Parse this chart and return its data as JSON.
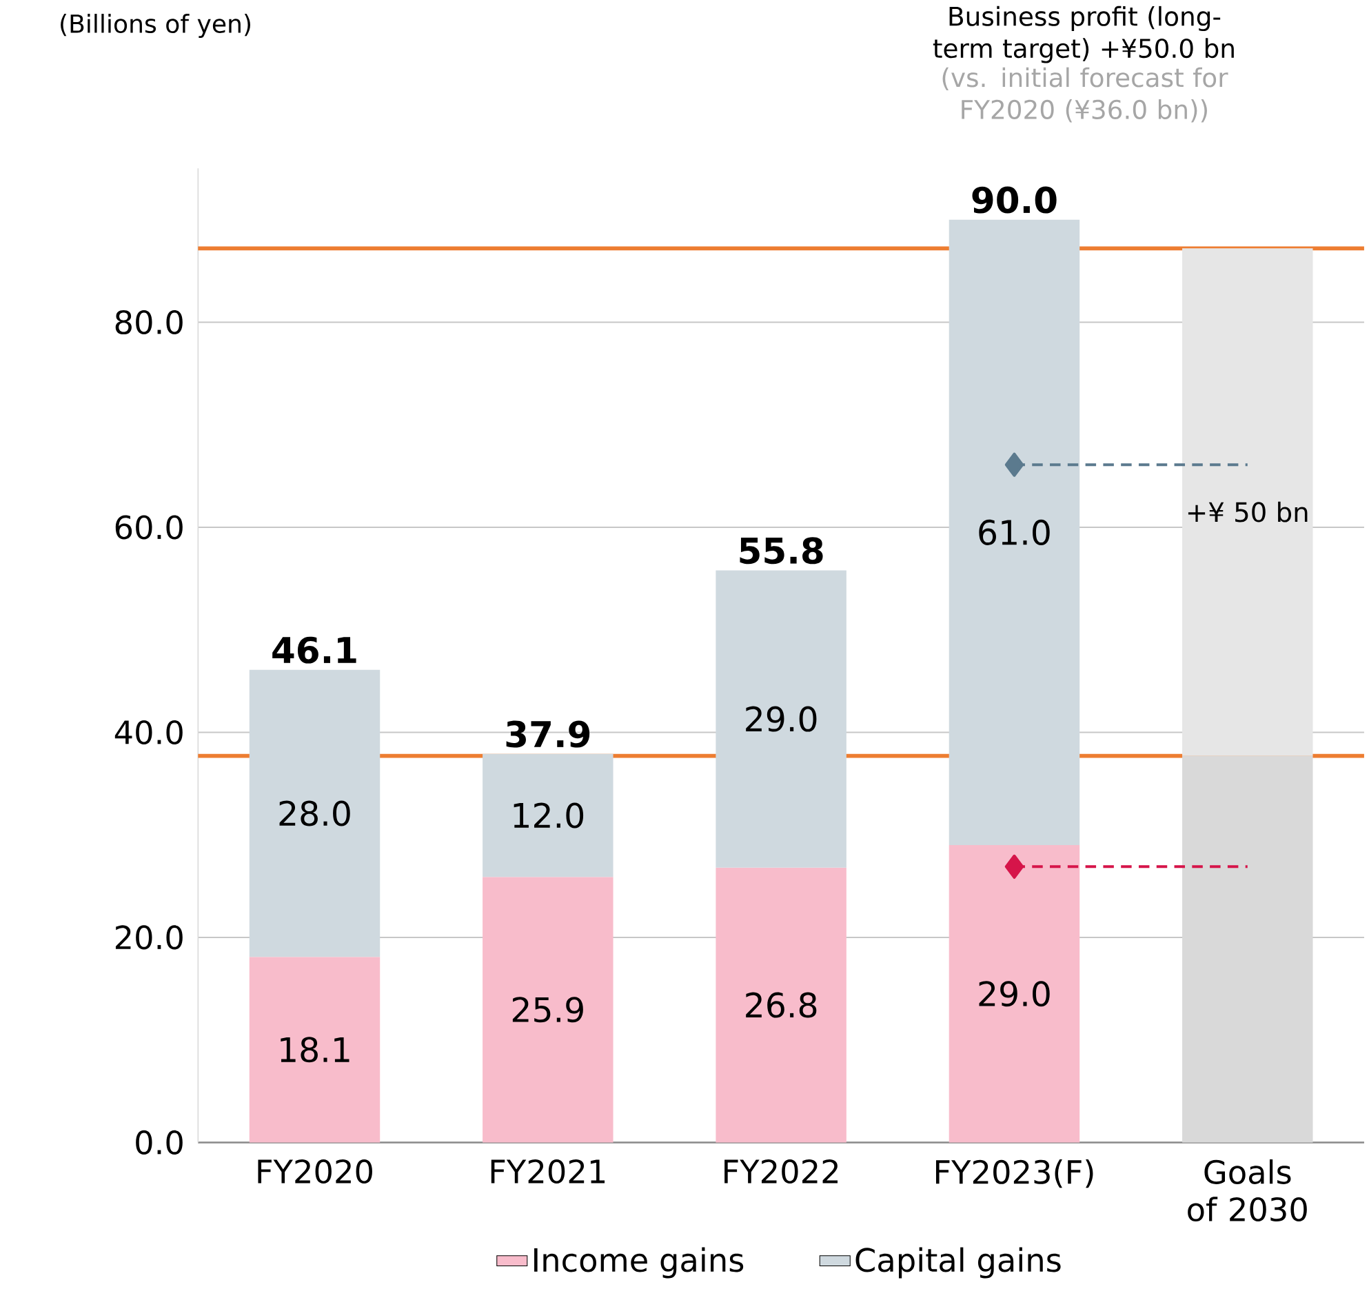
{
  "chart_data": {
    "type": "bar",
    "stacked": true,
    "categories": [
      "FY2020",
      "FY2021",
      "FY2022",
      "FY2023(F)",
      "Goals of 2030"
    ],
    "series": [
      {
        "name": "Income gains",
        "color": "#f8bccb",
        "values": [
          18.1,
          25.9,
          26.8,
          29.0,
          null
        ],
        "value_labels": [
          "18.1",
          "25.9",
          "26.8",
          "29.0",
          null
        ]
      },
      {
        "name": "Capital gains",
        "color": "#cfd9df",
        "values": [
          28.0,
          12.0,
          29.0,
          61.0,
          null
        ],
        "value_labels": [
          "28.0",
          "12.0",
          "29.0",
          "61.0",
          null
        ]
      },
      {
        "color": "#d9d9d9",
        "values": [
          null,
          null,
          null,
          null,
          37.7
        ]
      },
      {
        "color": "#e6e6e6",
        "values": [
          null,
          null,
          null,
          null,
          49.5
        ]
      },
      {
        "type": "line",
        "color": "#5b7a8e",
        "x": [
          "FY2023(F)",
          "Goals of 2030"
        ],
        "values": [
          66.1,
          66.1
        ],
        "marker": "diamond",
        "line_style": "dashed"
      },
      {
        "type": "line",
        "color": "#d6154a",
        "x": [
          "FY2023(F)",
          "Goals of 2030"
        ],
        "values": [
          26.9,
          26.9
        ],
        "marker": "diamond",
        "line_style": "dashed"
      }
    ],
    "totals": [
      "46.1",
      "37.9",
      "55.8",
      "90.0",
      null
    ],
    "ylim": [
      0,
      95
    ],
    "yticks": [
      {
        "value": 0,
        "label": "0.0"
      },
      {
        "value": 20,
        "label": "20.0"
      },
      {
        "value": 40,
        "label": "40.0"
      },
      {
        "value": 60,
        "label": "60.0"
      },
      {
        "value": 80,
        "label": "80.0"
      }
    ],
    "grid": "y",
    "legend": "bottom",
    "ref_lines": [
      {
        "axis": "y",
        "value": 87.2,
        "color": "#ed7d31"
      },
      {
        "axis": "y",
        "value": 37.7,
        "color": "#ed7d31"
      }
    ],
    "annotations": [
      "Business profit (long-term target) +¥50.0 bn",
      "(vs. initial forecast for FY2020 (¥36.0 bn))",
      "+¥ 50 bn",
      "(Billions of yen)"
    ]
  }
}
